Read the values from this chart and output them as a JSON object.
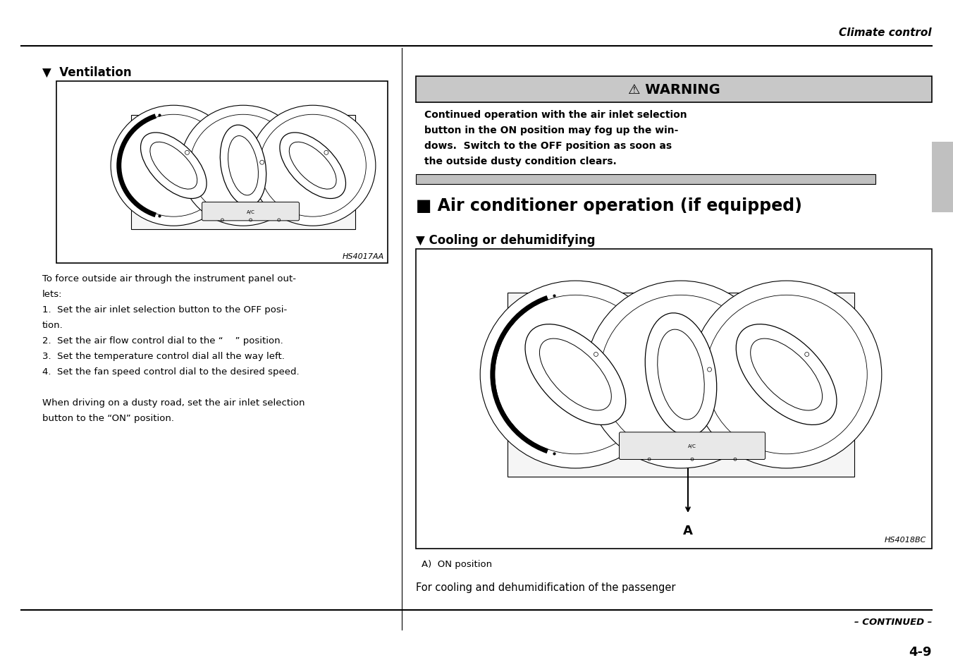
{
  "page_bg": "#ffffff",
  "header_text": "Climate control",
  "ventilation_heading": "▼  Ventilation",
  "ventilation_box_label": "HS4017AA",
  "left_body_lines": [
    "To force outside air through the instrument panel out-",
    "lets:",
    "1.  Set the air inlet selection button to the OFF posi-",
    "tion.",
    "2.  Set the air flow control dial to the “    ” position.",
    "3.  Set the temperature control dial all the way left.",
    "4.  Set the fan speed control dial to the desired speed.",
    "",
    "When driving on a dusty road, set the air inlet selection",
    "button to the “ON” position."
  ],
  "warning_header": "⚠ WARNING",
  "warning_body_lines": [
    "Continued operation with the air inlet selection",
    "button in the ON position may fog up the win-",
    "dows.  Switch to the OFF position as soon as",
    "the outside dusty condition clears."
  ],
  "ac_heading": "■ Air conditioner operation (if equipped)",
  "cooling_subheading": "▼ Cooling or dehumidifying",
  "cooling_box_label": "HS4018BC",
  "label_a": "A",
  "label_a_caption": "A)  ON position",
  "footer_text": "For cooling and dehumidification of the passenger",
  "continued_text": "– CONTINUED –",
  "page_number": "4-9",
  "sidebar_color": "#c0c0c0",
  "warning_bg": "#c8c8c8",
  "separator_bar_color": "#c0c0c0"
}
